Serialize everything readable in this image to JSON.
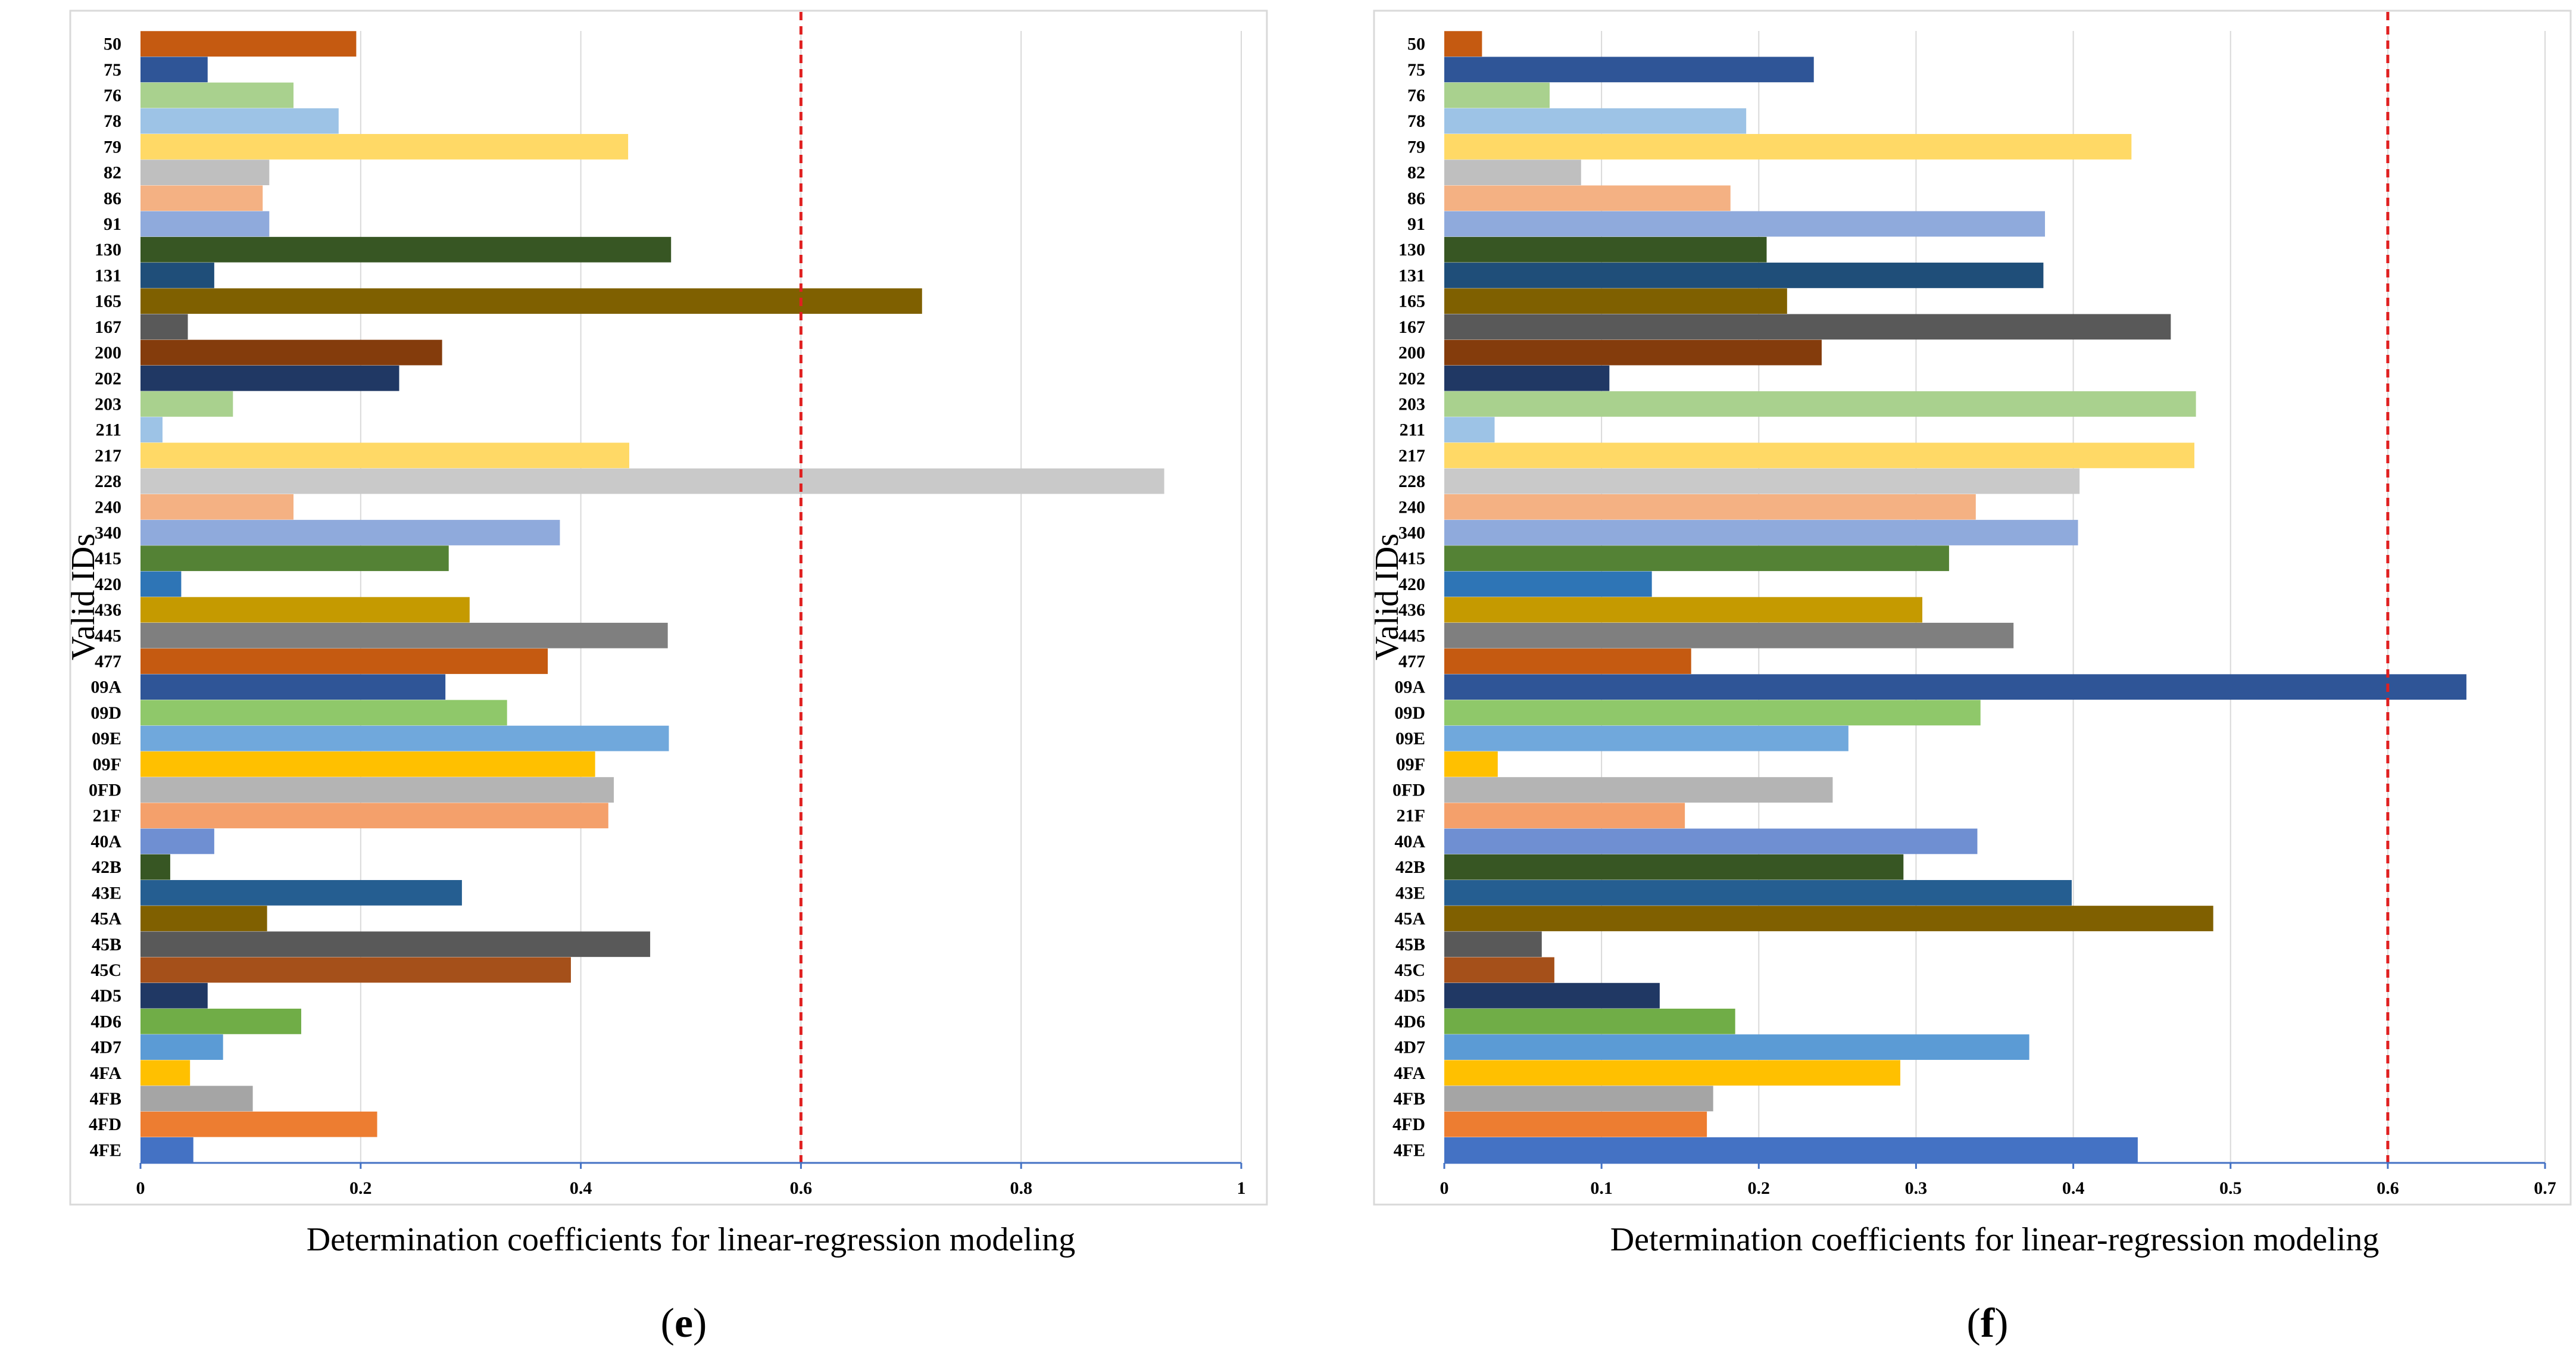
{
  "chart_data": [
    {
      "type": "bar",
      "orientation": "horizontal",
      "panel_label": "e",
      "xlabel": "Determination  coefficients  for linear-regression  modeling",
      "ylabel": "Valid IDs",
      "xlim": [
        0,
        1
      ],
      "xticks": [
        "0",
        "0.2",
        "0.4",
        "0.6",
        "0.8",
        "1"
      ],
      "xtick_values": [
        0,
        0.2,
        0.4,
        0.6,
        0.8,
        1
      ],
      "threshold": 0.6,
      "threshold_color": "#e02020",
      "grid": true,
      "categories": [
        "50",
        "75",
        "76",
        "78",
        "79",
        "82",
        "86",
        "91",
        "130",
        "131",
        "165",
        "167",
        "200",
        "202",
        "203",
        "211",
        "217",
        "228",
        "240",
        "340",
        "415",
        "420",
        "436",
        "445",
        "477",
        "09A",
        "09D",
        "09E",
        "09F",
        "0FD",
        "21F",
        "40A",
        "42B",
        "43E",
        "45A",
        "45B",
        "45C",
        "4D5",
        "4D6",
        "4D7",
        "4FA",
        "4FB",
        "4FD",
        "4FE"
      ],
      "values": [
        0.196,
        0.061,
        0.139,
        0.18,
        0.443,
        0.117,
        0.111,
        0.117,
        0.482,
        0.067,
        0.71,
        0.043,
        0.274,
        0.235,
        0.084,
        0.02,
        0.444,
        0.93,
        0.139,
        0.381,
        0.28,
        0.037,
        0.299,
        0.479,
        0.37,
        0.277,
        0.333,
        0.48,
        0.413,
        0.43,
        0.425,
        0.067,
        0.027,
        0.292,
        0.115,
        0.463,
        0.391,
        0.061,
        0.146,
        0.075,
        0.045,
        0.102,
        0.215,
        0.048
      ],
      "colors": [
        "#c55a11",
        "#2f5597",
        "#a9d18e",
        "#9dc3e6",
        "#ffd966",
        "#bfbfbf",
        "#f4b183",
        "#8faadc",
        "#375623",
        "#1f4e79",
        "#7f6000",
        "#595959",
        "#843c0c",
        "#203864",
        "#a9d18e",
        "#9dc3e6",
        "#ffd966",
        "#c9c9c9",
        "#f4b183",
        "#8faadc",
        "#548235",
        "#2e75b6",
        "#c59a00",
        "#7f7f7f",
        "#c55a11",
        "#2f5597",
        "#8fc86a",
        "#70a8dc",
        "#ffc000",
        "#b4b4b4",
        "#f4a06b",
        "#6f8fd2",
        "#375623",
        "#255e91",
        "#806000",
        "#595959",
        "#a5501a",
        "#203864",
        "#70ad47",
        "#5b9bd5",
        "#ffc000",
        "#a5a5a5",
        "#ed7d31",
        "#4472c4"
      ]
    },
    {
      "type": "bar",
      "orientation": "horizontal",
      "panel_label": "f",
      "xlabel": "Determination  coefficients  for linear-regression  modeling",
      "ylabel": "Valid IDs",
      "xlim": [
        0,
        0.7
      ],
      "xticks": [
        "0",
        "0.1",
        "0.2",
        "0.3",
        "0.4",
        "0.5",
        "0.6",
        "0.7"
      ],
      "xtick_values": [
        0,
        0.1,
        0.2,
        0.3,
        0.4,
        0.5,
        0.6,
        0.7
      ],
      "threshold": 0.6,
      "threshold_color": "#e02020",
      "grid": true,
      "categories": [
        "50",
        "75",
        "76",
        "78",
        "79",
        "82",
        "86",
        "91",
        "130",
        "131",
        "165",
        "167",
        "200",
        "202",
        "203",
        "211",
        "217",
        "228",
        "240",
        "340",
        "415",
        "420",
        "436",
        "445",
        "477",
        "09A",
        "09D",
        "09E",
        "09F",
        "0FD",
        "21F",
        "40A",
        "42B",
        "43E",
        "45A",
        "45B",
        "45C",
        "4D5",
        "4D6",
        "4D7",
        "4FA",
        "4FB",
        "4FD",
        "4FE"
      ],
      "values": [
        0.024,
        0.235,
        0.067,
        0.192,
        0.437,
        0.087,
        0.182,
        0.382,
        0.205,
        0.381,
        0.218,
        0.462,
        0.24,
        0.105,
        0.478,
        0.032,
        0.477,
        0.404,
        0.338,
        0.403,
        0.321,
        0.132,
        0.304,
        0.362,
        0.157,
        0.65,
        0.341,
        0.257,
        0.034,
        0.247,
        0.153,
        0.339,
        0.292,
        0.399,
        0.489,
        0.062,
        0.07,
        0.137,
        0.185,
        0.372,
        0.29,
        0.171,
        0.167,
        0.441
      ],
      "colors": [
        "#c55a11",
        "#2f5597",
        "#a9d18e",
        "#9dc3e6",
        "#ffd966",
        "#bfbfbf",
        "#f4b183",
        "#8faadc",
        "#375623",
        "#1f4e79",
        "#7f6000",
        "#595959",
        "#843c0c",
        "#203864",
        "#a9d18e",
        "#9dc3e6",
        "#ffd966",
        "#c9c9c9",
        "#f4b183",
        "#8faadc",
        "#548235",
        "#2e75b6",
        "#c59a00",
        "#7f7f7f",
        "#c55a11",
        "#2f5597",
        "#8fc86a",
        "#70a8dc",
        "#ffc000",
        "#b4b4b4",
        "#f4a06b",
        "#6f8fd2",
        "#375623",
        "#255e91",
        "#806000",
        "#595959",
        "#a5501a",
        "#203864",
        "#70ad47",
        "#5b9bd5",
        "#ffc000",
        "#a5a5a5",
        "#ed7d31",
        "#4472c4"
      ]
    }
  ]
}
